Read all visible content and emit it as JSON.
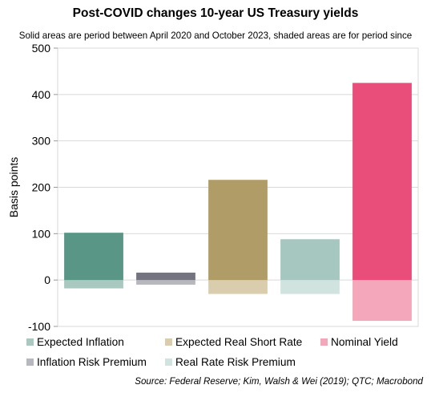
{
  "chart_data": {
    "type": "bar",
    "title": "Post-COVID changes 10-year US Treasury yields",
    "subtitle": "Solid areas are period between April 2020 and October 2023, shaded areas are for period since",
    "ylabel": "Basis points",
    "xlabel": "",
    "ylim": [
      -100,
      500
    ],
    "yticks": [
      -100,
      0,
      100,
      200,
      300,
      400,
      500
    ],
    "grid": true,
    "legend_position": "bottom",
    "categories": [
      "Expected Inflation",
      "Inflation Risk Premium",
      "Expected Real Short Rate",
      "Real Rate Risk Premium",
      "Nominal Yield"
    ],
    "series": [
      {
        "period": "solid",
        "values": [
          102,
          16,
          216,
          88,
          425
        ]
      },
      {
        "period": "shaded",
        "values": [
          -18,
          -10,
          -30,
          -30,
          -88
        ]
      }
    ],
    "colors": {
      "solid": [
        "#5a9685",
        "#737480",
        "#b09c67",
        "#a6c7c0",
        "#e94d79"
      ],
      "shaded": [
        "#a9c8bf",
        "#b7b7be",
        "#d9cdae",
        "#d1e3df",
        "#f4a7ba"
      ]
    },
    "legend": [
      {
        "label": "Expected Inflation",
        "color": "#a9c8bf"
      },
      {
        "label": "Expected Real Short Rate",
        "color": "#d9cdae"
      },
      {
        "label": "Nominal Yield",
        "color": "#f4a7ba"
      },
      {
        "label": "Inflation Risk Premium",
        "color": "#b7b7be"
      },
      {
        "label": "Real Rate Risk Premium",
        "color": "#d1e3df"
      }
    ],
    "source": "Source: Federal Reserve; Kim, Walsh & Wei (2019); QTC; Macrobond"
  }
}
